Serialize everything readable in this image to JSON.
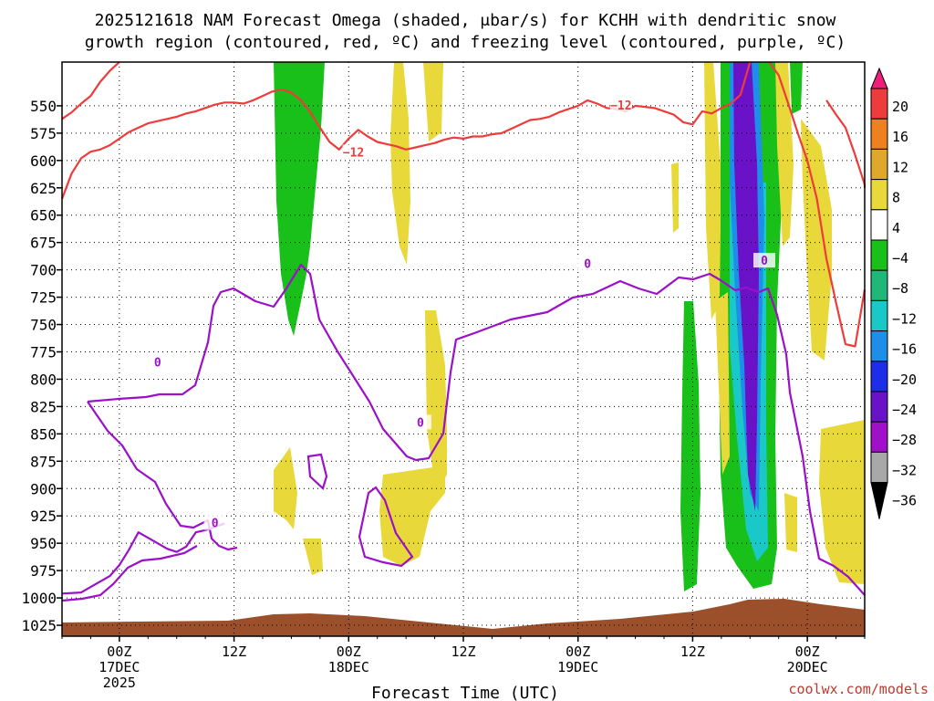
{
  "chart_data": {
    "type": "time-height cross section",
    "title": [
      "2025121618 NAM Forecast Omega (shaded, μbar/s) for KCHH with dendritic snow",
      "growth region (contoured, red, ºC) and freezing level (contoured, purple, ºC)"
    ],
    "xlabel": "Forecast Time (UTC)",
    "credit": "coolwx.com/models",
    "y_axis": {
      "unit": "hPa",
      "ylim": [
        1035,
        510
      ],
      "ticks": [
        550,
        575,
        600,
        625,
        650,
        675,
        700,
        725,
        750,
        775,
        800,
        825,
        850,
        875,
        900,
        925,
        950,
        975,
        1000,
        1025
      ],
      "tick_labels": [
        "550",
        "575",
        "600",
        "625",
        "650",
        "675",
        "700",
        "725",
        "750",
        "775",
        "800",
        "825",
        "850",
        "875",
        "900",
        "925",
        "950",
        "975",
        "1000",
        "1025"
      ]
    },
    "x_axis": {
      "unit": "hours after 2025-12-16 18Z",
      "xlim": [
        0,
        84
      ],
      "ticks": [
        6,
        18,
        30,
        42,
        54,
        66,
        78
      ],
      "tick_labels": [
        [
          "00Z",
          "17DEC",
          "2025"
        ],
        [
          "12Z"
        ],
        [
          "00Z",
          "18DEC"
        ],
        [
          "12Z"
        ],
        [
          "00Z",
          "19DEC"
        ],
        [
          "12Z"
        ],
        [
          "00Z",
          "20DEC"
        ]
      ]
    },
    "colorbar": {
      "levels": [
        20,
        16,
        12,
        8,
        4,
        -4,
        -8,
        -12,
        -16,
        -20,
        -24,
        -28,
        -32,
        -36
      ],
      "labels": [
        "20",
        "16",
        "12",
        "8",
        "4",
        "−4",
        "−8",
        "−12",
        "−16",
        "−20",
        "−24",
        "−28",
        "−32",
        "−36"
      ],
      "colors": [
        "#ee1f7a",
        "#ee3b3b",
        "#ee8020",
        "#e0a82a",
        "#e8d83a",
        "#ffffff",
        "#19c019",
        "#1fb878",
        "#1ac8c8",
        "#1e8ee8",
        "#1e2ee8",
        "#6a12c8",
        "#a010c8",
        "#a8a8a8",
        "#000000"
      ]
    },
    "series": [
      {
        "name": "dendritic growth region -12C",
        "color": "#ee3b3b",
        "label": "−12",
        "label_points": [
          [
            30.5,
            593
          ],
          [
            58.5,
            550
          ]
        ],
        "points": [
          [
            0,
            562
          ],
          [
            1,
            556
          ],
          [
            2,
            548
          ],
          [
            3,
            541
          ],
          [
            4,
            528
          ],
          [
            5,
            518
          ],
          [
            6,
            510
          ]
        ],
        "points2": [
          [
            0,
            635
          ],
          [
            1,
            612
          ],
          [
            2,
            598
          ],
          [
            3,
            592
          ],
          [
            4,
            590
          ],
          [
            5,
            586
          ],
          [
            6,
            580
          ],
          [
            7,
            574
          ],
          [
            8,
            570
          ],
          [
            9,
            566
          ],
          [
            10,
            564
          ],
          [
            11,
            562
          ],
          [
            12,
            560
          ],
          [
            13,
            557
          ],
          [
            14,
            555
          ],
          [
            15,
            552
          ],
          [
            16,
            549
          ],
          [
            17,
            547
          ],
          [
            18,
            547
          ],
          [
            19,
            548
          ],
          [
            20,
            545
          ],
          [
            21,
            541
          ],
          [
            22,
            537
          ],
          [
            23,
            535
          ],
          [
            24,
            538
          ],
          [
            25,
            545
          ],
          [
            26,
            556
          ],
          [
            27,
            570
          ],
          [
            28,
            583
          ],
          [
            29,
            590
          ],
          [
            30,
            580
          ],
          [
            31,
            572
          ],
          [
            32,
            578
          ],
          [
            33,
            583
          ],
          [
            34,
            585
          ],
          [
            35,
            587
          ],
          [
            36,
            590
          ],
          [
            37,
            588
          ],
          [
            38,
            586
          ],
          [
            39,
            584
          ],
          [
            40,
            581
          ],
          [
            41,
            579
          ],
          [
            42,
            580
          ],
          [
            43,
            578
          ],
          [
            44,
            578
          ],
          [
            45,
            576
          ],
          [
            46,
            575
          ],
          [
            47,
            571
          ],
          [
            48,
            567
          ],
          [
            49,
            563
          ],
          [
            50,
            562
          ],
          [
            51,
            560
          ],
          [
            52,
            556
          ],
          [
            53,
            553
          ],
          [
            54,
            550
          ],
          [
            55,
            545
          ],
          [
            56,
            548
          ],
          [
            57,
            552
          ],
          [
            58,
            553
          ],
          [
            59,
            555
          ],
          [
            60,
            550
          ],
          [
            61,
            551
          ],
          [
            62,
            552
          ],
          [
            63,
            555
          ],
          [
            64,
            558
          ],
          [
            65,
            565
          ],
          [
            66,
            567
          ],
          [
            67,
            555
          ],
          [
            68,
            557
          ],
          [
            69,
            552
          ],
          [
            70,
            548
          ],
          [
            71,
            540
          ],
          [
            72,
            510
          ]
        ],
        "points3": [
          [
            74,
            510
          ],
          [
            75,
            522
          ],
          [
            76,
            548
          ],
          [
            77,
            575
          ],
          [
            78,
            600
          ],
          [
            79,
            635
          ],
          [
            80,
            690
          ],
          [
            81,
            730
          ],
          [
            82,
            768
          ],
          [
            83,
            770
          ],
          [
            84,
            718
          ]
        ],
        "points4": [
          [
            80,
            545
          ],
          [
            81,
            558
          ],
          [
            82,
            570
          ],
          [
            83,
            595
          ],
          [
            84,
            622
          ],
          [
            84,
            625
          ]
        ]
      },
      {
        "name": "freezing level 0C",
        "color": "#9b10c8",
        "label": "0",
        "label_points": [
          [
            10,
            785
          ],
          [
            16,
            932
          ],
          [
            37.5,
            840
          ],
          [
            55,
            695
          ],
          [
            73.5,
            692
          ]
        ],
        "points": [
          [
            0,
            996
          ],
          [
            2,
            995
          ],
          [
            3,
            990
          ],
          [
            5,
            980
          ],
          [
            6,
            970
          ],
          [
            7,
            956
          ],
          [
            8,
            940
          ],
          [
            9,
            945
          ],
          [
            10,
            950
          ],
          [
            11,
            955
          ],
          [
            12,
            958
          ],
          [
            13,
            953
          ],
          [
            14,
            940
          ],
          [
            15,
            938
          ],
          [
            16,
            935
          ],
          [
            17,
            932
          ]
        ]
      }
    ]
  }
}
